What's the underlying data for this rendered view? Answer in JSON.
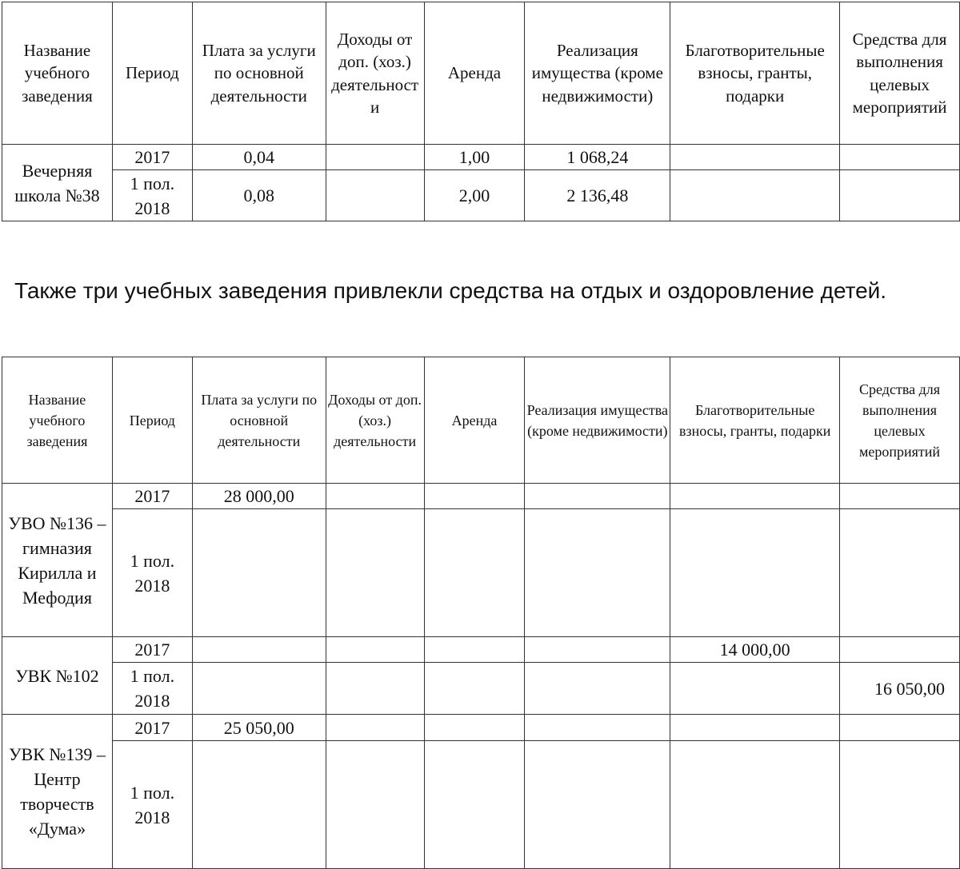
{
  "headers": [
    "Название учебного заведения",
    "Период",
    "Плата за услуги по основной деятельности",
    "Доходы от доп. (хоз.) деятельности",
    "Аренда",
    "Реализация имущества (кроме недвижимости)",
    "Благотворительные взносы, гранты, подарки",
    "Средства для выполнения целевых мероприятий"
  ],
  "table1": {
    "school": "Вечерняя школа №38",
    "rows": [
      {
        "period": "2017",
        "fee": "0,04",
        "rent": "1,00",
        "property": "1 068,24"
      },
      {
        "period": "1 пол. 2018",
        "fee": "0,08",
        "rent": "2,00",
        "property": "2 136,48"
      }
    ]
  },
  "paragraph": "Также три учебных заведения привлекли средства на отдых и оздоровление детей.",
  "table2": {
    "schools": [
      {
        "name": "УВО №136 – гимназия Кирилла и Мефодия",
        "rows": [
          {
            "period": "2017",
            "fee": "28 000,00"
          },
          {
            "period": "1 пол. 2018"
          }
        ]
      },
      {
        "name": "УВК №102",
        "rows": [
          {
            "period": "2017",
            "charity": "14 000,00"
          },
          {
            "period": "1 пол. 2018",
            "target": "16 050,00"
          }
        ]
      },
      {
        "name": "УВК №139 – Центр творчеств «Дума»",
        "rows": [
          {
            "period": "2017",
            "fee": "25 050,00"
          },
          {
            "period": "1 пол. 2018"
          }
        ]
      }
    ]
  }
}
